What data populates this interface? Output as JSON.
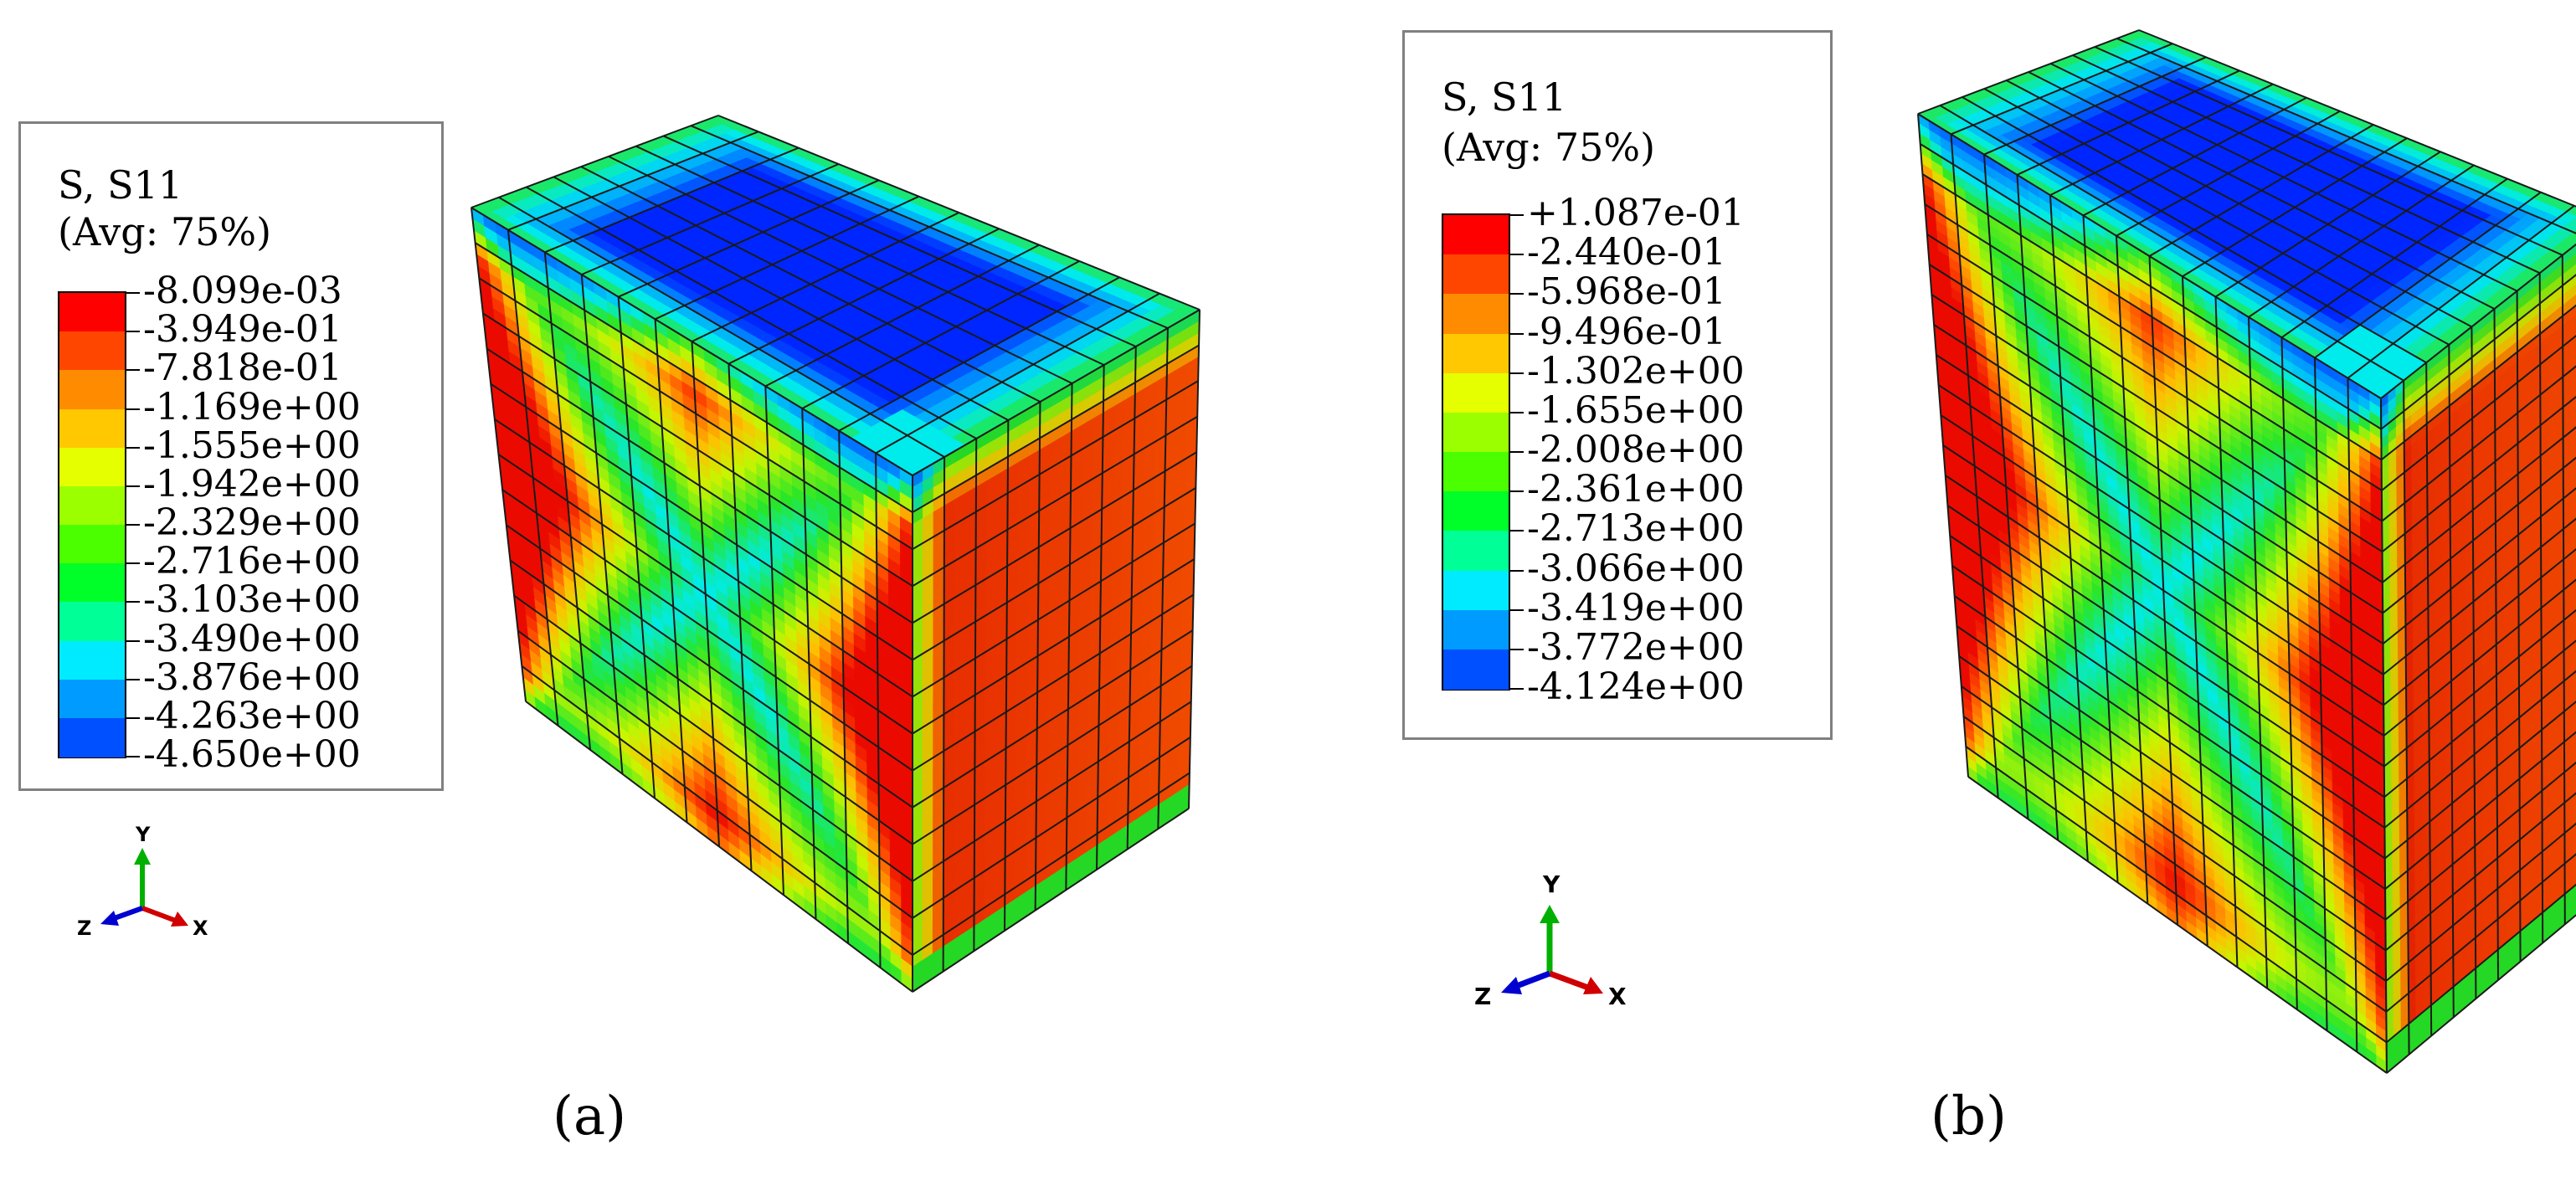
{
  "panels": [
    {
      "id": "a",
      "caption": "(a)",
      "legend": {
        "title_line1": "S, S11",
        "title_line2": "(Avg: 75%)",
        "values": [
          "-8.099e-03",
          "-3.949e-01",
          "-7.818e-01",
          "-1.169e+00",
          "-1.555e+00",
          "-1.942e+00",
          "-2.329e+00",
          "-2.716e+00",
          "-3.103e+00",
          "-3.490e+00",
          "-3.876e+00",
          "-4.263e+00",
          "-4.650e+00"
        ]
      },
      "axes": {
        "y": "Y",
        "x": "X",
        "z": "Z"
      }
    },
    {
      "id": "b",
      "caption": "(b)",
      "legend": {
        "title_line1": "S, S11",
        "title_line2": "(Avg: 75%)",
        "values": [
          "+1.087e-01",
          "-2.440e-01",
          "-5.968e-01",
          "-9.496e-01",
          "-1.302e+00",
          "-1.655e+00",
          "-2.008e+00",
          "-2.361e+00",
          "-2.713e+00",
          "-3.066e+00",
          "-3.419e+00",
          "-3.772e+00",
          "-4.124e+00"
        ]
      },
      "axes": {
        "y": "Y",
        "x": "X",
        "z": "Z"
      }
    }
  ],
  "colors": {
    "contour_scale": [
      "#ff0000",
      "#ff4600",
      "#ff8c00",
      "#ffc800",
      "#e6ff00",
      "#9bff00",
      "#4bff00",
      "#00ff28",
      "#00ff96",
      "#00ebff",
      "#009bff",
      "#0050ff",
      "#0000ff"
    ],
    "axis_y": "#00b000",
    "axis_x": "#d00000",
    "axis_z": "#0000d0",
    "mesh_line": "#1a1a1a"
  }
}
